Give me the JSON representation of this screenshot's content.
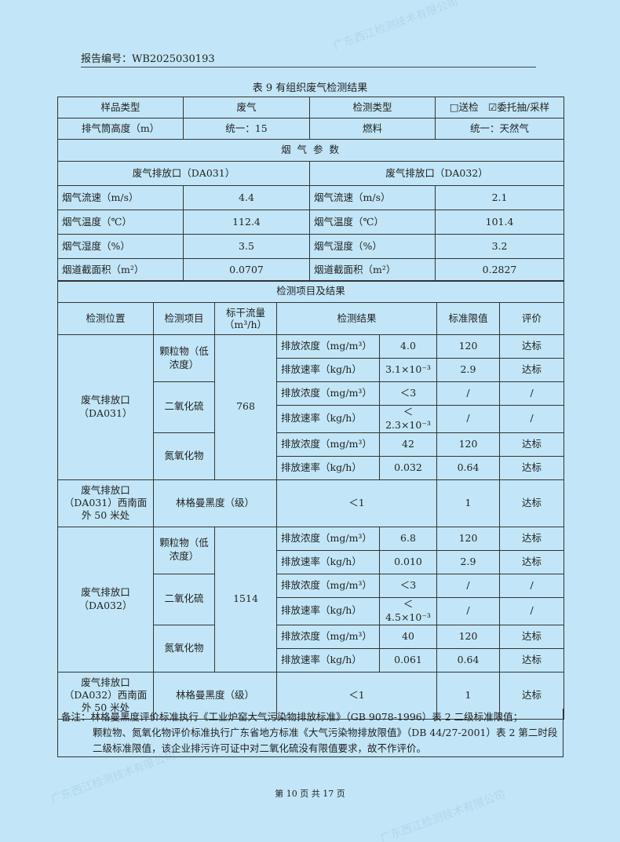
{
  "report_number": "报告编号：WB2025030193",
  "caption": "表 9 有组织废气检测结果",
  "header": {
    "sample_type_label": "样品类型",
    "sample_type": "废气",
    "test_type_label": "检测类型",
    "test_type": "□送检　☑委托抽/采样",
    "stack_height_label": "排气筒高度（m）",
    "stack_height": "统一：15",
    "fuel_label": "燃料",
    "fuel": "统一：天然气"
  },
  "params": {
    "title": "烟 气 参 数",
    "outlet_a": "废气排放口（DA031）",
    "outlet_b": "废气排放口（DA032）",
    "rows": [
      {
        "label": "烟气流速（m/s）",
        "a": "4.4",
        "b": "2.1"
      },
      {
        "label": "烟气温度（℃）",
        "a": "112.4",
        "b": "101.4"
      },
      {
        "label": "烟气湿度（%）",
        "a": "3.5",
        "b": "3.2"
      },
      {
        "label": "烟道截面积（m²）",
        "a": "0.0707",
        "b": "0.2827"
      }
    ]
  },
  "results": {
    "title": "检测项目及结果",
    "headers": [
      "检测位置",
      "检测项目",
      "标干流量（m³/h）",
      "检测结果",
      "标准限值",
      "评价"
    ],
    "groups": [
      {
        "location": "废气排放口（DA031）",
        "flow": "768",
        "items": [
          {
            "name": "颗粒物（低浓度）",
            "rows": [
              [
                "排放浓度（mg/m³）",
                "4.0",
                "120",
                "达标"
              ],
              [
                "排放速率（kg/h）",
                "3.1×10⁻³",
                "2.9",
                "达标"
              ]
            ]
          },
          {
            "name": "二氧化硫",
            "rows": [
              [
                "排放浓度（mg/m³）",
                "＜3",
                "/",
                "/"
              ],
              [
                "排放速率（kg/h）",
                "＜2.3×10⁻³",
                "/",
                "/"
              ]
            ]
          },
          {
            "name": "氮氧化物",
            "rows": [
              [
                "排放浓度（mg/m³）",
                "42",
                "120",
                "达标"
              ],
              [
                "排放速率（kg/h）",
                "0.032",
                "0.64",
                "达标"
              ]
            ]
          }
        ],
        "ringelmann": {
          "location": "废气排放口（DA031）西南面外 50 米处",
          "item": "林格曼黑度（级）",
          "result": "＜1",
          "limit": "1",
          "eval": "达标"
        }
      },
      {
        "location": "废气排放口（DA032）",
        "flow": "1514",
        "items": [
          {
            "name": "颗粒物（低浓度）",
            "rows": [
              [
                "排放浓度（mg/m³）",
                "6.8",
                "120",
                "达标"
              ],
              [
                "排放速率（kg/h）",
                "0.010",
                "2.9",
                "达标"
              ]
            ]
          },
          {
            "name": "二氧化硫",
            "rows": [
              [
                "排放浓度（mg/m³）",
                "＜3",
                "/",
                "/"
              ],
              [
                "排放速率（kg/h）",
                "＜4.5×10⁻³",
                "/",
                "/"
              ]
            ]
          },
          {
            "name": "氮氧化物",
            "rows": [
              [
                "排放浓度（mg/m³）",
                "40",
                "120",
                "达标"
              ],
              [
                "排放速率（kg/h）",
                "0.061",
                "0.64",
                "达标"
              ]
            ]
          }
        ],
        "ringelmann": {
          "location": "废气排放口（DA032）西南面外 50 米处",
          "item": "林格曼黑度（级）",
          "result": "＜1",
          "limit": "1",
          "eval": "达标"
        }
      }
    ]
  },
  "note": {
    "line1": "备注：林格曼黑度评价标准执行《工业炉窑大气污染物排放标准》（GB 9078-1996）表 2 二级标准限值；",
    "line2": "颗粒物、氮氧化物评价标准执行广东省地方标准《大气污染物排放限值》（DB 44/27-2001）表 2 第二时段二级标准限值，该企业排污许可证中对二氧化硫没有限值要求，故不作评价。"
  },
  "footer": "第 10 页 共 17 页",
  "watermark": "广东西江检测技术有限公司",
  "colors": {
    "background": "#c2e6f7",
    "border": "#333333"
  }
}
